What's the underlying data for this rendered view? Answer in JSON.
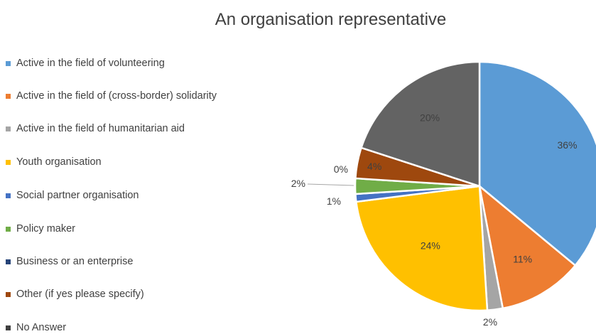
{
  "chart_data": {
    "type": "pie",
    "title": "An organisation representative",
    "legend_position": "left",
    "slices": [
      {
        "label": "Active in the field of volunteering",
        "value": 36,
        "display": "36%",
        "color": "#5B9BD5"
      },
      {
        "label": "Active in the field of (cross-border) solidarity",
        "value": 11,
        "display": "11%",
        "color": "#ED7D31"
      },
      {
        "label": "Active in the field of humanitarian aid",
        "value": 2,
        "display": "2%",
        "color": "#A5A5A5"
      },
      {
        "label": "Youth organisation",
        "value": 24,
        "display": "24%",
        "color": "#FFC000"
      },
      {
        "label": "Social partner organisation",
        "value": 1,
        "display": "1%",
        "color": "#4472C4"
      },
      {
        "label": "Policy maker",
        "value": 2,
        "display": "2%",
        "color": "#70AD47"
      },
      {
        "label": "Business or an enterprise",
        "value": 0,
        "display": "0%",
        "color": "#264478"
      },
      {
        "label": "Other (if yes please specify)",
        "value": 4,
        "display": "4%",
        "color": "#9E480E"
      },
      {
        "label": "No Answer",
        "value": 20,
        "display": "20%",
        "color": "#636363"
      }
    ]
  }
}
